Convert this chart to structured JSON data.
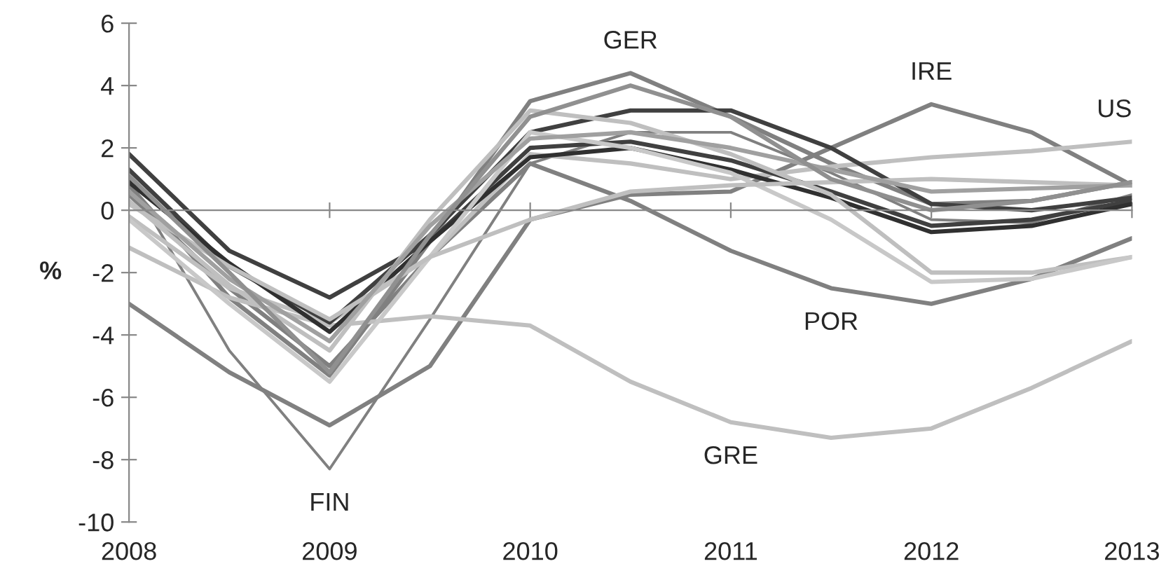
{
  "chart_data": {
    "type": "line",
    "ylabel": "%",
    "x": [
      2008,
      2008.5,
      2009,
      2009.5,
      2010,
      2010.5,
      2011,
      2011.5,
      2012,
      2012.5,
      2013
    ],
    "xlim": [
      2008,
      2013
    ],
    "xticks": [
      2008,
      2009,
      2010,
      2011,
      2012,
      2013
    ],
    "ylim": [
      -10,
      6
    ],
    "yticks": [
      -10,
      -8,
      -6,
      -4,
      -2,
      0,
      2,
      4,
      6
    ],
    "grid": false,
    "marker": "none",
    "line_style": "solid",
    "ref_lines": [
      {
        "axis": "y",
        "value": 0,
        "color": "#888888"
      }
    ],
    "series": [
      {
        "name": "FIN",
        "color": "#808080",
        "values": [
          1.0,
          -4.5,
          -8.3,
          -3.5,
          1.5,
          2.5,
          2.5,
          1.2,
          -0.3,
          -0.4,
          0.5
        ]
      },
      {
        "name": "IRE",
        "color": "#808080",
        "values": [
          -3.0,
          -5.2,
          -6.9,
          -5.0,
          -0.3,
          0.5,
          0.6,
          2.0,
          3.4,
          2.5,
          0.8
        ]
      },
      {
        "name": "GER",
        "color": "#808080",
        "values": [
          0.8,
          -2.8,
          -5.3,
          -1.0,
          3.5,
          4.4,
          3.0,
          1.5,
          0.2,
          0.3,
          0.9
        ]
      },
      {
        "name": "POR",
        "color": "#808080",
        "values": [
          0.5,
          -2.5,
          -5.0,
          -1.5,
          1.5,
          0.3,
          -1.3,
          -2.5,
          -3.0,
          -2.2,
          -0.9
        ]
      },
      {
        "name": "GRE",
        "color": "#bfbfbf",
        "values": [
          -1.2,
          -2.8,
          -3.7,
          -3.4,
          -3.7,
          -5.5,
          -6.8,
          -7.3,
          -7.0,
          -5.7,
          -4.2
        ]
      },
      {
        "name": "US",
        "color": "#bfbfbf",
        "values": [
          -0.2,
          -2.5,
          -3.6,
          -1.5,
          1.8,
          1.5,
          1.0,
          1.4,
          1.7,
          1.9,
          2.2
        ]
      },
      {
        "color": "#404040",
        "values": [
          1.8,
          -1.3,
          -2.8,
          -1.0,
          2.0,
          2.2,
          1.6,
          0.6,
          -0.5,
          -0.3,
          0.3
        ]
      },
      {
        "color": "#404040",
        "values": [
          1.3,
          -1.8,
          -3.6,
          -0.8,
          2.5,
          3.2,
          3.2,
          2.0,
          0.2,
          0.0,
          0.4
        ]
      },
      {
        "color": "#303030",
        "values": [
          0.9,
          -1.7,
          -3.9,
          -1.0,
          1.7,
          2.0,
          1.3,
          0.4,
          -0.7,
          -0.5,
          0.2
        ]
      },
      {
        "color": "#bfbfbf",
        "values": [
          0.3,
          -2.4,
          -4.5,
          -0.3,
          3.2,
          2.8,
          1.8,
          0.5,
          -2.0,
          -2.0,
          -1.5
        ]
      },
      {
        "color": "#c8c8c8",
        "values": [
          -0.3,
          -3.0,
          -5.5,
          -1.5,
          2.5,
          2.0,
          1.2,
          -0.3,
          -2.3,
          -2.2,
          -1.5
        ]
      },
      {
        "color": "#bfbfbf",
        "values": [
          0.2,
          -1.8,
          -3.5,
          -1.5,
          -0.3,
          0.6,
          0.8,
          0.9,
          1.0,
          0.9,
          0.8
        ]
      },
      {
        "color": "#a0a0a0",
        "values": [
          0.6,
          -2.2,
          -4.2,
          -0.5,
          2.3,
          2.5,
          2.0,
          1.3,
          0.6,
          0.7,
          0.8
        ]
      },
      {
        "color": "#909090",
        "values": [
          1.1,
          -2.0,
          -5.2,
          -0.8,
          3.0,
          4.0,
          3.0,
          1.0,
          0.0,
          0.3,
          0.9
        ]
      }
    ]
  }
}
